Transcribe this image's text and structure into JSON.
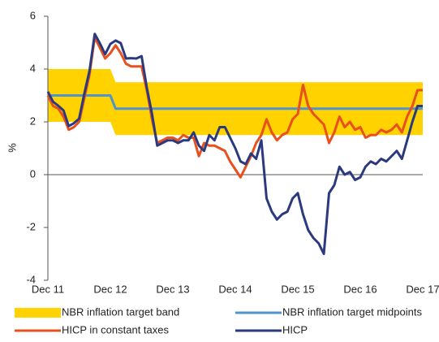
{
  "chart_data": {
    "type": "line",
    "ylabel": "%",
    "categories": [
      "Dec 11",
      null,
      null,
      null,
      null,
      null,
      null,
      null,
      null,
      null,
      null,
      null,
      "Dec 12",
      null,
      null,
      null,
      null,
      null,
      null,
      null,
      null,
      null,
      null,
      null,
      "Dec 13",
      null,
      null,
      null,
      null,
      null,
      null,
      null,
      null,
      null,
      null,
      null,
      "Dec 14",
      null,
      null,
      null,
      null,
      null,
      null,
      null,
      null,
      null,
      null,
      null,
      "Dec 15",
      null,
      null,
      null,
      null,
      null,
      null,
      null,
      null,
      null,
      null,
      null,
      "Dec 16",
      null,
      null,
      null,
      null,
      null,
      null,
      null,
      null,
      null,
      null,
      null,
      "Dec 17"
    ],
    "ylim": [
      -4,
      6
    ],
    "yticks": [
      -4,
      -2,
      0,
      2,
      4,
      6
    ],
    "band": {
      "name": "NBR inflation target band",
      "color": "#ffd200",
      "low": [
        2,
        2,
        2,
        2,
        2,
        2,
        2,
        2,
        2,
        2,
        2,
        2,
        2,
        1.5,
        1.5,
        1.5,
        1.5,
        1.5,
        1.5,
        1.5,
        1.5,
        1.5,
        1.5,
        1.5,
        1.5,
        1.5,
        1.5,
        1.5,
        1.5,
        1.5,
        1.5,
        1.5,
        1.5,
        1.5,
        1.5,
        1.5,
        1.5,
        1.5,
        1.5,
        1.5,
        1.5,
        1.5,
        1.5,
        1.5,
        1.5,
        1.5,
        1.5,
        1.5,
        1.5,
        1.5,
        1.5,
        1.5,
        1.5,
        1.5,
        1.5,
        1.5,
        1.5,
        1.5,
        1.5,
        1.5,
        1.5,
        1.5,
        1.5,
        1.5,
        1.5,
        1.5,
        1.5,
        1.5,
        1.5,
        1.5,
        1.5,
        1.5,
        1.5
      ],
      "high": [
        4,
        4,
        4,
        4,
        4,
        4,
        4,
        4,
        4,
        4,
        4,
        4,
        4,
        3.5,
        3.5,
        3.5,
        3.5,
        3.5,
        3.5,
        3.5,
        3.5,
        3.5,
        3.5,
        3.5,
        3.5,
        3.5,
        3.5,
        3.5,
        3.5,
        3.5,
        3.5,
        3.5,
        3.5,
        3.5,
        3.5,
        3.5,
        3.5,
        3.5,
        3.5,
        3.5,
        3.5,
        3.5,
        3.5,
        3.5,
        3.5,
        3.5,
        3.5,
        3.5,
        3.5,
        3.5,
        3.5,
        3.5,
        3.5,
        3.5,
        3.5,
        3.5,
        3.5,
        3.5,
        3.5,
        3.5,
        3.5,
        3.5,
        3.5,
        3.5,
        3.5,
        3.5,
        3.5,
        3.5,
        3.5,
        3.5,
        3.5,
        3.5,
        3.5
      ]
    },
    "series": [
      {
        "name": "NBR inflation target midpoints",
        "color": "#4f94cd",
        "values": [
          3,
          3,
          3,
          3,
          3,
          3,
          3,
          3,
          3,
          3,
          3,
          3,
          3,
          2.5,
          2.5,
          2.5,
          2.5,
          2.5,
          2.5,
          2.5,
          2.5,
          2.5,
          2.5,
          2.5,
          2.5,
          2.5,
          2.5,
          2.5,
          2.5,
          2.5,
          2.5,
          2.5,
          2.5,
          2.5,
          2.5,
          2.5,
          2.5,
          2.5,
          2.5,
          2.5,
          2.5,
          2.5,
          2.5,
          2.5,
          2.5,
          2.5,
          2.5,
          2.5,
          2.5,
          2.5,
          2.5,
          2.5,
          2.5,
          2.5,
          2.5,
          2.5,
          2.5,
          2.5,
          2.5,
          2.5,
          2.5,
          2.5,
          2.5,
          2.5,
          2.5,
          2.5,
          2.5,
          2.5,
          2.5,
          2.5,
          2.5,
          2.5,
          2.5
        ]
      },
      {
        "name": "HICP in constant taxes",
        "color": "#e8501e",
        "values": [
          3.0,
          2.6,
          2.5,
          2.2,
          1.7,
          1.8,
          2.0,
          2.9,
          3.8,
          5.2,
          4.8,
          4.4,
          4.6,
          4.9,
          4.6,
          4.2,
          4.1,
          4.1,
          4.1,
          3.2,
          2.1,
          1.2,
          1.3,
          1.4,
          1.4,
          1.3,
          1.5,
          1.4,
          1.4,
          0.7,
          1.2,
          1.1,
          1.1,
          1.0,
          0.9,
          0.5,
          0.2,
          -0.1,
          0.3,
          0.7,
          1.2,
          1.5,
          2.1,
          1.6,
          1.3,
          1.5,
          1.6,
          2.1,
          2.3,
          3.4,
          2.6,
          2.3,
          2.1,
          1.9,
          1.2,
          1.6,
          2.2,
          1.8,
          2.0,
          1.7,
          1.8,
          1.4,
          1.5,
          1.5,
          1.7,
          1.6,
          1.7,
          1.9,
          1.6,
          2.2,
          2.6,
          3.2,
          3.2
        ]
      },
      {
        "name": "HICP",
        "color": "#2b3a7e",
        "values": [
          3.14,
          2.76,
          2.61,
          2.43,
          1.84,
          1.95,
          2.12,
          3.07,
          3.94,
          5.33,
          4.97,
          4.56,
          4.95,
          5.08,
          4.98,
          4.4,
          4.41,
          4.4,
          4.49,
          3.3,
          2.3,
          1.1,
          1.2,
          1.3,
          1.3,
          1.2,
          1.3,
          1.3,
          1.6,
          1.1,
          0.9,
          1.5,
          1.3,
          1.8,
          1.8,
          1.4,
          1.0,
          0.5,
          0.4,
          0.8,
          0.6,
          1.3,
          -0.9,
          -1.4,
          -1.7,
          -1.5,
          -1.4,
          -0.9,
          -0.7,
          -1.5,
          -2.1,
          -2.4,
          -2.6,
          -3.0,
          -0.7,
          -0.4,
          0.3,
          0.0,
          0.1,
          -0.2,
          -0.1,
          0.3,
          0.5,
          0.4,
          0.6,
          0.5,
          0.7,
          0.9,
          0.6,
          1.3,
          2.0,
          2.6,
          2.6
        ]
      }
    ]
  }
}
